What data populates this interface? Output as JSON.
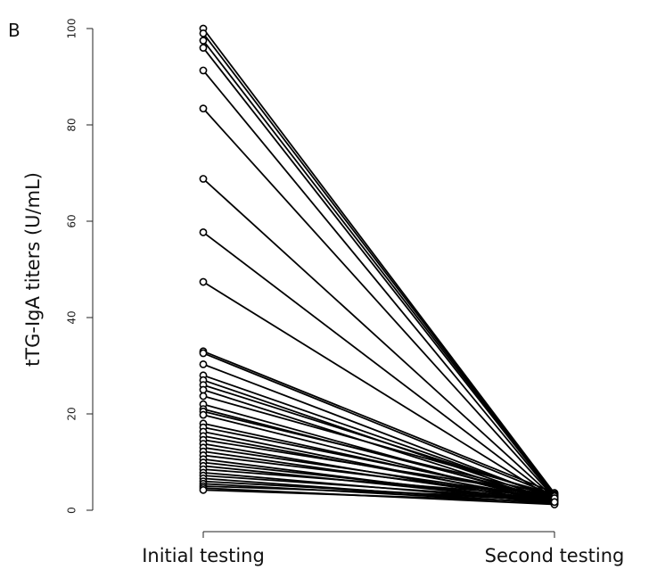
{
  "panel_label": "B",
  "chart_data": {
    "type": "line",
    "title": "",
    "ylabel": "tTG-IgA titers (U/mL)",
    "xlabel": "",
    "categories": [
      "Initial testing",
      "Second testing"
    ],
    "ylim": [
      0,
      100
    ],
    "yticks": [
      "0",
      "20",
      "40",
      "60",
      "80",
      "100"
    ],
    "grid": false,
    "legend": "none",
    "line_color": "#000000",
    "pairs": [
      [
        100,
        3.5
      ],
      [
        99,
        3.3
      ],
      [
        97.5,
        3.2
      ],
      [
        96,
        3.0
      ],
      [
        91.3,
        2.8
      ],
      [
        83.4,
        2.6
      ],
      [
        68.8,
        2.5
      ],
      [
        57.7,
        2.3
      ],
      [
        47.4,
        2.2
      ],
      [
        33,
        3.6
      ],
      [
        32.6,
        3.1
      ],
      [
        30.3,
        2.4
      ],
      [
        28,
        2.6
      ],
      [
        27,
        2.0
      ],
      [
        26,
        2.9
      ],
      [
        25,
        1.8
      ],
      [
        23.7,
        3.3
      ],
      [
        22,
        1.9
      ],
      [
        21,
        2.3
      ],
      [
        20.5,
        3.0
      ],
      [
        19.8,
        1.6
      ],
      [
        18,
        2.2
      ],
      [
        17.2,
        2.7
      ],
      [
        16.3,
        1.7
      ],
      [
        15.4,
        2.1
      ],
      [
        14.6,
        3.1
      ],
      [
        13.8,
        1.5
      ],
      [
        13,
        2.4
      ],
      [
        12.2,
        1.9
      ],
      [
        11.4,
        2.6
      ],
      [
        10.6,
        1.4
      ],
      [
        9.9,
        2.0
      ],
      [
        9.2,
        1.8
      ],
      [
        8.5,
        2.9
      ],
      [
        7.8,
        1.6
      ],
      [
        7.2,
        2.2
      ],
      [
        6.6,
        1.3
      ],
      [
        6.0,
        1.9
      ],
      [
        5.5,
        1.5
      ],
      [
        5.0,
        2.5
      ],
      [
        4.6,
        1.2
      ],
      [
        4.2,
        1.7
      ]
    ]
  }
}
